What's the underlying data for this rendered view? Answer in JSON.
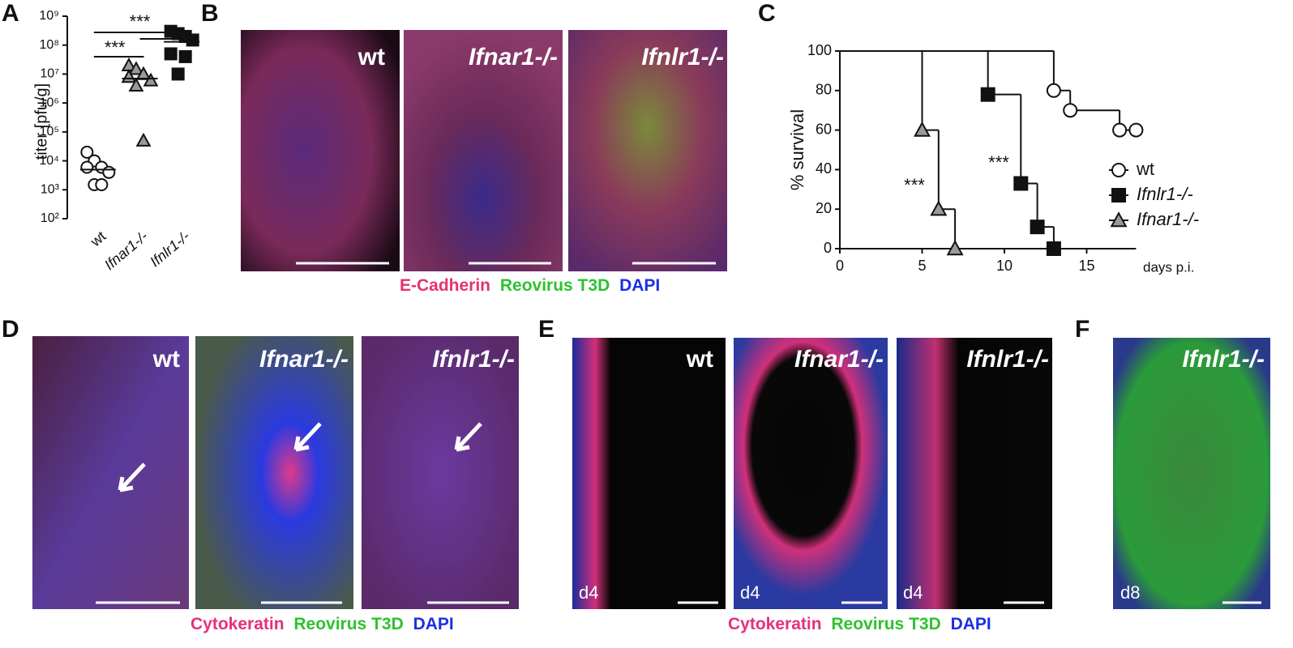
{
  "panel_letters": [
    "A",
    "B",
    "C",
    "D",
    "E",
    "F"
  ],
  "chart_data": [
    {
      "type": "scatter",
      "ylabel": "titer [pfu/g]",
      "log_scale": true,
      "categories": [
        "wt",
        "Ifnar1-/-",
        "Ifnlr1-/-"
      ],
      "ylim": [
        100,
        1000000000
      ],
      "yticks": [
        {
          "value": 100,
          "label": "10²"
        },
        {
          "value": 1000,
          "label": "10³"
        },
        {
          "value": 10000,
          "label": "10⁴"
        },
        {
          "value": 100000,
          "label": "10⁵"
        },
        {
          "value": 1000000,
          "label": "10⁶"
        },
        {
          "value": 10000000,
          "label": "10⁷"
        },
        {
          "value": 100000000,
          "label": "10⁸"
        },
        {
          "value": 1000000000,
          "label": "10⁹"
        }
      ],
      "series": [
        {
          "marker": "circle",
          "color": "#ffffff",
          "values": [
            20000,
            10000,
            6000,
            4000,
            6000,
            1500,
            1500
          ],
          "mean": 5000
        },
        {
          "marker": "triangle",
          "color": "#999999",
          "values": [
            20000000,
            15000000,
            10000000,
            6000000,
            8000000,
            4000000,
            50000
          ],
          "mean": 7000000
        },
        {
          "marker": "square",
          "color": "#111111",
          "values": [
            300000000,
            250000000,
            200000000,
            150000000,
            50000000,
            10000000,
            40000000
          ],
          "mean": 130000000
        }
      ],
      "annotations": [
        {
          "text": "***"
        },
        {
          "text": "***"
        }
      ]
    },
    {
      "type": "survival",
      "ylabel": "% survival",
      "xlabel": "days p.i.",
      "legend": "right",
      "xlim": [
        0,
        18
      ],
      "xticks": [
        0,
        5,
        10,
        15
      ],
      "ylim": [
        0,
        100
      ],
      "yticks": [
        0,
        20,
        40,
        60,
        80,
        100
      ],
      "series": [
        {
          "name": "wt",
          "marker": "circle",
          "color": "#ffffff",
          "x": [
            0,
            13,
            14,
            17,
            18
          ],
          "values": [
            100,
            80,
            70,
            60,
            60
          ]
        },
        {
          "name": "Ifnlr1-/-",
          "marker": "square",
          "color": "#111111",
          "x": [
            0,
            9,
            11,
            12,
            13
          ],
          "values": [
            100,
            78,
            33,
            11,
            0
          ]
        },
        {
          "name": "Ifnar1-/-",
          "marker": "triangle",
          "color": "#999999",
          "x": [
            0,
            5,
            6,
            7
          ],
          "values": [
            100,
            60,
            20,
            0
          ]
        }
      ],
      "annotations": [
        {
          "text": "***"
        },
        {
          "text": "***"
        }
      ]
    }
  ],
  "panel_b": {
    "images": [
      "wt",
      "Ifnar1-/-",
      "Ifnlr1-/-"
    ],
    "caption": [
      "E-Cadherin",
      "Reovirus T3D",
      "DAPI"
    ]
  },
  "panel_d": {
    "images": [
      "wt",
      "Ifnar1-/-",
      "Ifnlr1-/-"
    ],
    "caption": [
      "Cytokeratin",
      "Reovirus T3D",
      "DAPI"
    ]
  },
  "panel_e": {
    "images": [
      {
        "label": "wt",
        "day": "d4"
      },
      {
        "label": "Ifnar1-/-",
        "day": "d4"
      },
      {
        "label": "Ifnlr1-/-",
        "day": "d4"
      }
    ],
    "caption": [
      "Cytokeratin",
      "Reovirus T3D",
      "DAPI"
    ]
  },
  "panel_f": {
    "image": {
      "label": "Ifnlr1-/-",
      "day": "d8"
    }
  }
}
